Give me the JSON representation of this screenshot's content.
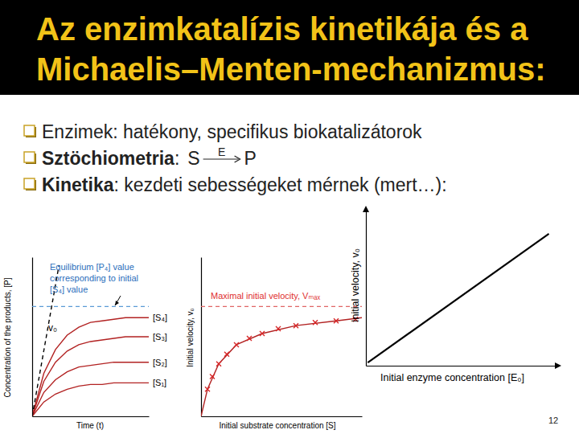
{
  "slide": {
    "title": [
      "Az enzimkatalízis kinetikája és a",
      "Michaelis–Menten-mechanizmus:"
    ],
    "bullets": [
      {
        "parts": [
          {
            "text": "Enzimek: hatékony, specifikus biokatalizátorok"
          }
        ]
      },
      {
        "parts": [
          {
            "text": "Sztöchiometria",
            "bold": true
          },
          {
            "text": ":"
          }
        ],
        "equation": {
          "reactant": "S",
          "catalyst": "E",
          "product": "P"
        }
      },
      {
        "parts": [
          {
            "text": "Kinetika",
            "bold": true
          },
          {
            "text": ": kezdeti sebességeket mérnek (mert…):"
          }
        ]
      }
    ],
    "page_number": 12
  },
  "chart_data": [
    {
      "type": "line",
      "x_label": "Time (t)",
      "y_label": "Concentration of the products, [P]",
      "xlim": [
        0,
        10
      ],
      "ylim": [
        0,
        1
      ],
      "xticks": [],
      "yticks": [],
      "tick_labels": false,
      "series": [
        {
          "name": "[S₄]",
          "color": "#b22222",
          "x": [
            0,
            1,
            2,
            3,
            4,
            5,
            6,
            7,
            8,
            9,
            10
          ],
          "values": [
            0,
            0.27,
            0.42,
            0.51,
            0.56,
            0.59,
            0.6,
            0.61,
            0.62,
            0.62,
            0.62
          ]
        },
        {
          "name": "[S₃]",
          "color": "#b22222",
          "x": [
            0,
            1,
            2,
            3,
            4,
            5,
            6,
            7,
            8,
            9,
            10
          ],
          "values": [
            0,
            0.22,
            0.34,
            0.41,
            0.45,
            0.47,
            0.48,
            0.49,
            0.5,
            0.5,
            0.5
          ]
        },
        {
          "name": "[S₂]",
          "color": "#b22222",
          "x": [
            0,
            1,
            2,
            3,
            4,
            5,
            6,
            7,
            8,
            9,
            10
          ],
          "values": [
            0,
            0.15,
            0.23,
            0.28,
            0.31,
            0.32,
            0.33,
            0.34,
            0.34,
            0.34,
            0.34
          ]
        },
        {
          "name": "[S₁]",
          "color": "#b22222",
          "x": [
            0,
            1,
            2,
            3,
            4,
            5,
            6,
            7,
            8,
            9,
            10
          ],
          "values": [
            0,
            0.09,
            0.14,
            0.17,
            0.19,
            0.2,
            0.2,
            0.21,
            0.21,
            0.21,
            0.21
          ]
        },
        {
          "color": "#000000",
          "line_style": "dashed",
          "x": [
            0,
            2.3
          ],
          "values": [
            0,
            0.95
          ]
        },
        {
          "color": "#5b9bd5",
          "line_style": "dashed",
          "x": [
            0,
            10
          ],
          "values": [
            0.69,
            0.69
          ]
        }
      ],
      "annotations": [
        {
          "text": [
            "Equilibrium [P₄] value",
            "corresponding to initial",
            "[S₄] value"
          ],
          "color": "#2a6ebb"
        },
        {
          "text": [
            "v₀"
          ],
          "color": "#000000"
        }
      ]
    },
    {
      "type": "line",
      "x_label": "Initial substrate concentration [S]",
      "y_label": "Initial velocity, v₀",
      "xlim": [
        0,
        10
      ],
      "ylim": [
        0,
        1
      ],
      "xticks": [],
      "yticks": [],
      "tick_labels": false,
      "series": [
        {
          "color": "#b22222",
          "x": [
            0,
            0.4,
            1.1,
            2.2,
            3.8,
            5.9,
            8.4,
            10
          ],
          "values": [
            0,
            0.17,
            0.33,
            0.45,
            0.52,
            0.57,
            0.6,
            0.62
          ]
        },
        {
          "type": "scatter",
          "marker": "x",
          "color": "#d62728",
          "x": [
            0.4,
            0.7,
            1.1,
            1.6,
            2.2,
            3.0,
            3.8,
            4.8,
            5.9,
            7.1,
            8.4,
            9.6
          ],
          "values": [
            0.17,
            0.25,
            0.33,
            0.39,
            0.45,
            0.49,
            0.52,
            0.55,
            0.57,
            0.59,
            0.6,
            0.61
          ]
        },
        {
          "color": "#e06666",
          "line_style": "dashed",
          "x": [
            0,
            10
          ],
          "values": [
            0.69,
            0.69
          ]
        }
      ],
      "annotations": [
        {
          "text": [
            "Maximal initial velocity, Vₘₐₓ"
          ],
          "color": "#e03030"
        }
      ]
    },
    {
      "type": "line",
      "x_label": "Initial enzyme concentration [E₀]",
      "y_label": "Initial velocity, v₀",
      "xlim": [
        0,
        1
      ],
      "ylim": [
        0,
        1
      ],
      "xticks": [],
      "yticks": [],
      "tick_labels": false,
      "series": [
        {
          "color": "#000000",
          "x": [
            0.01,
            0.96
          ],
          "values": [
            0.02,
            0.85
          ]
        }
      ]
    }
  ]
}
